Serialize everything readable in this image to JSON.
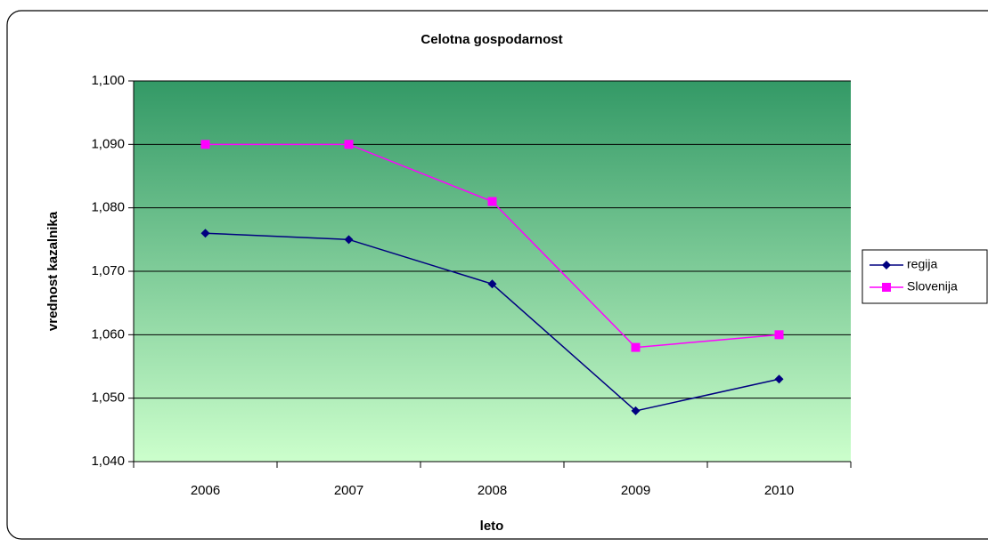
{
  "chart_data": {
    "type": "line",
    "title": "Celotna gospodarnost",
    "x_label": "leto",
    "y_label": "vrednost kazalnika",
    "categories": [
      "2006",
      "2007",
      "2008",
      "2009",
      "2010"
    ],
    "series": [
      {
        "name": "regija",
        "color": "#000080",
        "marker": "diamond",
        "values": [
          1.076,
          1.075,
          1.068,
          1.048,
          1.053
        ]
      },
      {
        "name": "Slovenija",
        "color": "#ff00ff",
        "marker": "square",
        "values": [
          1.09,
          1.09,
          1.081,
          1.058,
          1.06
        ]
      }
    ],
    "ylim": [
      1.04,
      1.1
    ],
    "yticks": [
      {
        "value": 1.04,
        "label": "1,040"
      },
      {
        "value": 1.05,
        "label": "1,050"
      },
      {
        "value": 1.06,
        "label": "1,060"
      },
      {
        "value": 1.07,
        "label": "1,070"
      },
      {
        "value": 1.08,
        "label": "1,080"
      },
      {
        "value": 1.09,
        "label": "1,090"
      },
      {
        "value": 1.1,
        "label": "1,100"
      }
    ],
    "grid": true,
    "legend": "right"
  }
}
